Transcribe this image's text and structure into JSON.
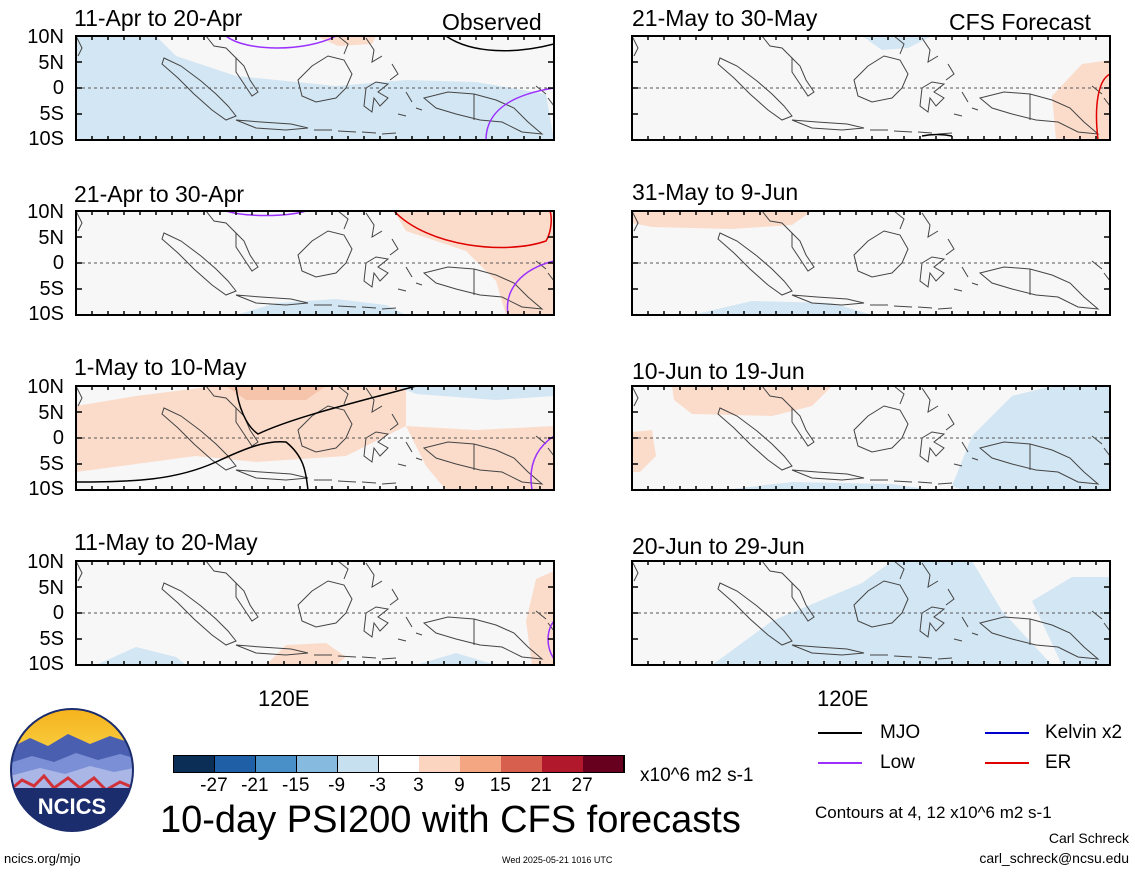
{
  "panels_left": [
    {
      "title": "11-Apr to 20-Apr",
      "tag": "Observed"
    },
    {
      "title": "21-Apr to 30-Apr",
      "tag": ""
    },
    {
      "title": "1-May to 10-May",
      "tag": ""
    },
    {
      "title": "11-May to 20-May",
      "tag": ""
    }
  ],
  "panels_right": [
    {
      "title": "21-May to 30-May",
      "tag": "CFS Forecast"
    },
    {
      "title": "31-May to 9-Jun",
      "tag": ""
    },
    {
      "title": "10-Jun to 19-Jun",
      "tag": ""
    },
    {
      "title": "20-Jun to 29-Jun",
      "tag": ""
    }
  ],
  "y_ticks": [
    "10N",
    "5N",
    "0",
    "5S",
    "10S"
  ],
  "x_tick": "120E",
  "colorbar": {
    "labels": [
      "-27",
      "-21",
      "-15",
      "-9",
      "-3",
      "3",
      "9",
      "15",
      "21",
      "27"
    ],
    "colors": [
      "#0b2e57",
      "#1f5fa6",
      "#4a90c8",
      "#86bbdf",
      "#c6e0f0",
      "#ffffff",
      "#fcd5c0",
      "#f4a582",
      "#d6604d",
      "#b2182b",
      "#67001f"
    ],
    "units": "x10^6 m2 s-1"
  },
  "legend": {
    "mjo": "MJO",
    "low": "Low",
    "kelvin": "Kelvin x2",
    "er": "ER",
    "colors": {
      "mjo": "#000000",
      "low": "#9b30ff",
      "kelvin": "#0000cc",
      "er": "#e00000"
    }
  },
  "logo": "NCICS",
  "main_title": "10-day PSI200 with CFS forecasts",
  "contours_note": "Contours at 4, 12 x10^6 m2 s-1",
  "author": "Carl Schreck",
  "email": "carl_schreck@ncsu.edu",
  "url": "ncics.org/mjo",
  "timestamp": "Wed 2025-05-21 1016 UTC",
  "colors": {
    "blue_fill": "#d3e6f3",
    "orange_fill": "#fbdccb",
    "orange_dark": "#f6c4aa",
    "panel_bg": "#f7f7f7",
    "coast": "#444444"
  }
}
